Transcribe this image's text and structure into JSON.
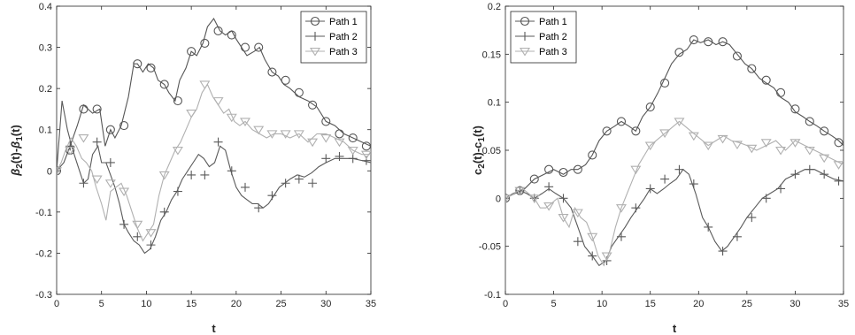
{
  "chart_data": [
    {
      "type": "line",
      "xlabel": "t",
      "ylabel": "β2(t)-β1(t)",
      "ylabel_parts": [
        {
          "text": "β",
          "style": "italic",
          "sub": false
        },
        {
          "text": "2",
          "style": "normal",
          "sub": true
        },
        {
          "text": "(t)-",
          "style": "normal",
          "sub": false
        },
        {
          "text": "β",
          "style": "italic",
          "sub": false
        },
        {
          "text": "1",
          "style": "normal",
          "sub": true
        },
        {
          "text": "(t)",
          "style": "normal",
          "sub": false
        }
      ],
      "xlim": [
        0,
        35
      ],
      "ylim": [
        -0.3,
        0.4
      ],
      "xticks": [
        0,
        5,
        10,
        15,
        20,
        25,
        30,
        35
      ],
      "yticks": [
        -0.3,
        -0.2,
        -0.1,
        0,
        0.1,
        0.2,
        0.3,
        0.4
      ],
      "ytick_labels": [
        "-0.3",
        "-0.2",
        "-0.1",
        "0",
        "0.1",
        "0.2",
        "0.3",
        "0.4"
      ],
      "grid": false,
      "legend_position": "top-right",
      "series": [
        {
          "name": "Path 1",
          "marker": "circle",
          "color": "#555555",
          "x": [
            0,
            0.8,
            1.5,
            2.3,
            3.0,
            4.0,
            4.8,
            5.4,
            6.0,
            6.5,
            7.2,
            8.0,
            8.6,
            9.0,
            9.6,
            10.2,
            10.8,
            11.3,
            12.0,
            12.5,
            13.2,
            13.7,
            14.4,
            15.0,
            15.6,
            16.3,
            16.8,
            17.5,
            18.2,
            18.8,
            19.5,
            20.0,
            20.6,
            21.2,
            22.0,
            22.6,
            23.2,
            24.0,
            24.7,
            25.3,
            26.0,
            27.0,
            28.0,
            29.0,
            30.0,
            31.0,
            32.0,
            33.0,
            34.0,
            35.0
          ],
          "y": [
            0,
            0.02,
            0.06,
            0.11,
            0.16,
            0.14,
            0.15,
            0.06,
            0.1,
            0.08,
            0.11,
            0.18,
            0.26,
            0.26,
            0.24,
            0.26,
            0.25,
            0.22,
            0.21,
            0.19,
            0.17,
            0.22,
            0.25,
            0.29,
            0.28,
            0.31,
            0.35,
            0.37,
            0.34,
            0.33,
            0.34,
            0.32,
            0.3,
            0.28,
            0.29,
            0.3,
            0.27,
            0.24,
            0.23,
            0.21,
            0.2,
            0.18,
            0.17,
            0.155,
            0.12,
            0.11,
            0.09,
            0.08,
            0.07,
            0.06
          ],
          "marker_x": [
            0,
            1.5,
            3.0,
            4.5,
            6.0,
            7.5,
            9.0,
            10.5,
            12.0,
            13.5,
            15.0,
            16.5,
            18.0,
            19.5,
            21.0,
            22.5,
            24.0,
            25.5,
            27.0,
            28.5,
            30.0,
            31.5,
            33.0,
            34.5
          ],
          "marker_y": [
            0,
            0.05,
            0.15,
            0.15,
            0.1,
            0.11,
            0.26,
            0.25,
            0.21,
            0.17,
            0.29,
            0.31,
            0.34,
            0.33,
            0.3,
            0.3,
            0.24,
            0.22,
            0.19,
            0.16,
            0.12,
            0.09,
            0.08,
            0.06
          ]
        },
        {
          "name": "Path 2",
          "marker": "plus",
          "color": "#5a5a5a",
          "x": [
            0,
            0.6,
            1.2,
            1.8,
            2.4,
            3.0,
            3.5,
            4.0,
            4.6,
            5.0,
            5.5,
            6.0,
            6.5,
            7.0,
            7.5,
            8.0,
            8.6,
            9.2,
            9.8,
            10.4,
            11.0,
            11.6,
            12.2,
            12.8,
            13.4,
            14.0,
            14.6,
            15.2,
            15.8,
            16.4,
            17.0,
            17.6,
            18.2,
            18.8,
            19.4,
            20.0,
            20.6,
            21.2,
            21.8,
            22.4,
            23.0,
            23.6,
            24.2,
            24.8,
            25.4,
            26.0,
            26.8,
            27.6,
            28.4,
            29.2,
            30.0,
            31.0,
            32.0,
            33.0,
            34.0,
            35.0
          ],
          "y": [
            0,
            0.17,
            0.1,
            0.05,
            0.01,
            -0.03,
            -0.02,
            0.04,
            0.06,
            0.02,
            0.02,
            -0.01,
            -0.04,
            -0.08,
            -0.13,
            -0.15,
            -0.17,
            -0.18,
            -0.2,
            -0.19,
            -0.16,
            -0.12,
            -0.1,
            -0.07,
            -0.05,
            -0.02,
            0.0,
            0.02,
            0.04,
            0.03,
            0.01,
            0.02,
            0.06,
            0.05,
            0.0,
            -0.04,
            -0.06,
            -0.07,
            -0.08,
            -0.08,
            -0.09,
            -0.08,
            -0.06,
            -0.04,
            -0.03,
            -0.02,
            -0.01,
            -0.015,
            -0.005,
            0.01,
            0.02,
            0.03,
            0.03,
            0.03,
            0.025,
            0.02
          ],
          "marker_x": [
            0,
            1.5,
            3.0,
            4.5,
            6.0,
            7.5,
            9.0,
            10.5,
            12.0,
            13.5,
            15.0,
            16.5,
            18.0,
            19.5,
            21.0,
            22.5,
            24.0,
            25.5,
            27.0,
            28.5,
            30.0,
            31.5,
            33.0,
            34.5
          ],
          "marker_y": [
            0,
            0.06,
            -0.03,
            0.07,
            0.02,
            -0.13,
            -0.16,
            -0.18,
            -0.1,
            -0.05,
            -0.01,
            -0.01,
            0.07,
            0.0,
            -0.04,
            -0.09,
            -0.06,
            -0.03,
            -0.02,
            -0.03,
            0.03,
            0.035,
            0.03,
            0.025
          ]
        },
        {
          "name": "Path 3",
          "marker": "triangle-down",
          "color": "#b0b0b0",
          "x": [
            0,
            0.5,
            1.0,
            1.6,
            2.2,
            2.8,
            3.3,
            3.9,
            4.4,
            5.0,
            5.5,
            6.0,
            6.6,
            7.2,
            7.8,
            8.4,
            9.0,
            9.6,
            10.2,
            10.8,
            11.4,
            12.0,
            12.6,
            13.2,
            13.8,
            14.4,
            15.0,
            15.6,
            16.2,
            16.8,
            17.4,
            18.0,
            18.6,
            19.2,
            19.8,
            20.4,
            21.0,
            21.8,
            22.6,
            23.4,
            24.2,
            25.0,
            26.0,
            27.0,
            28.0,
            29.0,
            30.0,
            31.0,
            32.0,
            33.0,
            34.0,
            35.0
          ],
          "y": [
            0,
            0.02,
            0.05,
            0.08,
            0.06,
            0.03,
            0.02,
            0.0,
            -0.04,
            -0.08,
            -0.12,
            -0.05,
            -0.04,
            -0.03,
            -0.06,
            -0.1,
            -0.14,
            -0.17,
            -0.15,
            -0.13,
            -0.06,
            -0.01,
            0.02,
            0.05,
            0.07,
            0.1,
            0.13,
            0.15,
            0.19,
            0.21,
            0.18,
            0.16,
            0.14,
            0.15,
            0.12,
            0.11,
            0.12,
            0.1,
            0.09,
            0.08,
            0.09,
            0.09,
            0.08,
            0.09,
            0.07,
            0.09,
            0.09,
            0.08,
            0.07,
            0.05,
            0.04,
            0.04
          ],
          "marker_x": [
            0,
            1.5,
            3.0,
            4.5,
            6.0,
            7.5,
            9.0,
            10.5,
            12.0,
            13.5,
            15.0,
            16.5,
            18.0,
            19.5,
            21.0,
            22.5,
            24.0,
            25.5,
            27.0,
            28.5,
            30.0,
            31.5,
            33.0,
            34.5
          ],
          "marker_y": [
            0,
            0.05,
            0.08,
            -0.02,
            -0.03,
            -0.05,
            -0.13,
            -0.15,
            -0.01,
            0.05,
            0.14,
            0.21,
            0.17,
            0.13,
            0.12,
            0.1,
            0.09,
            0.09,
            0.09,
            0.07,
            0.08,
            0.07,
            0.05,
            0.04
          ]
        }
      ]
    },
    {
      "type": "line",
      "xlabel": "t",
      "ylabel": "c2(t)-c1(t)",
      "ylabel_parts": [
        {
          "text": "c",
          "style": "normal",
          "sub": false
        },
        {
          "text": "2",
          "style": "normal",
          "sub": true
        },
        {
          "text": "(t)-c",
          "style": "normal",
          "sub": false
        },
        {
          "text": "1",
          "style": "normal",
          "sub": true
        },
        {
          "text": "(t)",
          "style": "normal",
          "sub": false
        }
      ],
      "xlim": [
        0,
        35
      ],
      "ylim": [
        -0.1,
        0.2
      ],
      "xticks": [
        0,
        5,
        10,
        15,
        20,
        25,
        30,
        35
      ],
      "yticks": [
        -0.1,
        -0.05,
        0,
        0.05,
        0.1,
        0.15,
        0.2
      ],
      "ytick_labels": [
        "-0.1",
        "-0.05",
        "0",
        "0.05",
        "0.1",
        "0.15",
        "0.2"
      ],
      "grid": false,
      "legend_position": "top-left",
      "series": [
        {
          "name": "Path 1",
          "marker": "circle",
          "color": "#555555",
          "x": [
            0,
            1.0,
            2.0,
            3.0,
            4.0,
            5.0,
            6.0,
            6.8,
            7.5,
            8.3,
            9.0,
            9.7,
            10.5,
            11.3,
            12.0,
            12.8,
            13.5,
            14.2,
            15.0,
            15.8,
            16.5,
            17.2,
            18.0,
            18.8,
            19.5,
            20.2,
            21.0,
            21.8,
            22.5,
            23.2,
            24.0,
            24.8,
            25.5,
            26.3,
            27.0,
            27.8,
            28.5,
            29.3,
            30.0,
            30.8,
            31.5,
            32.3,
            33.0,
            33.8,
            34.5,
            35.0
          ],
          "y": [
            0,
            0.005,
            0.01,
            0.02,
            0.025,
            0.03,
            0.025,
            0.03,
            0.03,
            0.035,
            0.045,
            0.06,
            0.07,
            0.075,
            0.08,
            0.075,
            0.07,
            0.085,
            0.095,
            0.11,
            0.125,
            0.14,
            0.15,
            0.155,
            0.165,
            0.162,
            0.165,
            0.16,
            0.163,
            0.16,
            0.15,
            0.14,
            0.135,
            0.125,
            0.12,
            0.115,
            0.105,
            0.1,
            0.09,
            0.085,
            0.08,
            0.075,
            0.07,
            0.065,
            0.06,
            0.055
          ],
          "marker_x": [
            0,
            1.5,
            3.0,
            4.5,
            6.0,
            7.5,
            9.0,
            10.5,
            12.0,
            13.5,
            15.0,
            16.5,
            18.0,
            19.5,
            21.0,
            22.5,
            24.0,
            25.5,
            27.0,
            28.5,
            30.0,
            31.5,
            33.0,
            34.5
          ],
          "marker_y": [
            0,
            0.008,
            0.02,
            0.03,
            0.027,
            0.03,
            0.045,
            0.07,
            0.08,
            0.07,
            0.095,
            0.12,
            0.152,
            0.165,
            0.163,
            0.163,
            0.148,
            0.135,
            0.123,
            0.11,
            0.093,
            0.08,
            0.07,
            0.058
          ]
        },
        {
          "name": "Path 2",
          "marker": "plus",
          "color": "#5a5a5a",
          "x": [
            0,
            0.8,
            1.5,
            2.2,
            3.0,
            3.8,
            4.5,
            5.2,
            6.0,
            6.8,
            7.5,
            8.2,
            9.0,
            9.7,
            10.4,
            11.0,
            11.7,
            12.4,
            13.0,
            13.7,
            14.4,
            15.0,
            15.7,
            16.4,
            17.0,
            17.7,
            18.4,
            19.0,
            19.7,
            20.4,
            21.0,
            21.7,
            22.4,
            23.0,
            23.7,
            24.4,
            25.0,
            25.8,
            26.6,
            27.4,
            28.2,
            29.0,
            30.0,
            31.0,
            32.0,
            33.0,
            34.0,
            35.0
          ],
          "y": [
            0,
            0.005,
            0.008,
            0.005,
            0.0,
            0.005,
            0.01,
            0.005,
            0.0,
            -0.01,
            -0.03,
            -0.05,
            -0.06,
            -0.07,
            -0.065,
            -0.05,
            -0.04,
            -0.03,
            -0.02,
            -0.01,
            0.0,
            0.01,
            0.005,
            0.01,
            0.015,
            0.02,
            0.03,
            0.025,
            0.005,
            -0.02,
            -0.03,
            -0.045,
            -0.055,
            -0.05,
            -0.04,
            -0.03,
            -0.02,
            -0.01,
            0.0,
            0.005,
            0.01,
            0.02,
            0.025,
            0.03,
            0.03,
            0.025,
            0.02,
            0.018
          ],
          "marker_x": [
            0,
            1.5,
            3.0,
            4.5,
            6.0,
            7.5,
            9.0,
            10.5,
            12.0,
            13.5,
            15.0,
            16.5,
            18.0,
            19.5,
            21.0,
            22.5,
            24.0,
            25.5,
            27.0,
            28.5,
            30.0,
            31.5,
            33.0,
            34.5
          ],
          "marker_y": [
            0,
            0.008,
            0.0,
            0.012,
            0.0,
            -0.045,
            -0.06,
            -0.065,
            -0.04,
            -0.01,
            0.01,
            0.02,
            0.03,
            0.015,
            -0.03,
            -0.055,
            -0.04,
            -0.02,
            0.0,
            0.01,
            0.025,
            0.03,
            0.025,
            0.018
          ]
        },
        {
          "name": "Path 3",
          "marker": "triangle-down",
          "color": "#b0b0b0",
          "x": [
            0,
            0.6,
            1.2,
            1.8,
            2.4,
            3.0,
            3.6,
            4.2,
            4.8,
            5.4,
            6.0,
            6.6,
            7.2,
            7.8,
            8.4,
            9.0,
            9.6,
            10.2,
            10.8,
            11.4,
            12.0,
            12.6,
            13.2,
            13.8,
            14.4,
            15.0,
            15.6,
            16.2,
            16.8,
            17.4,
            18.0,
            18.6,
            19.2,
            19.8,
            20.4,
            21.0,
            21.8,
            22.6,
            23.4,
            24.2,
            25.0,
            26.0,
            27.0,
            28.0,
            29.0,
            30.0,
            31.0,
            32.0,
            33.0,
            34.0,
            35.0
          ],
          "y": [
            0,
            0.003,
            0.007,
            0.01,
            0.005,
            0.0,
            -0.01,
            -0.01,
            -0.005,
            0.0,
            -0.02,
            -0.03,
            -0.01,
            -0.02,
            -0.025,
            -0.04,
            -0.06,
            -0.07,
            -0.055,
            -0.03,
            -0.01,
            0.005,
            0.02,
            0.035,
            0.045,
            0.055,
            0.06,
            0.065,
            0.07,
            0.075,
            0.08,
            0.075,
            0.07,
            0.065,
            0.06,
            0.055,
            0.06,
            0.065,
            0.06,
            0.058,
            0.055,
            0.05,
            0.055,
            0.06,
            0.05,
            0.06,
            0.055,
            0.05,
            0.045,
            0.04,
            0.035
          ],
          "marker_x": [
            0,
            1.5,
            3.0,
            4.5,
            6.0,
            7.5,
            9.0,
            10.5,
            12.0,
            13.5,
            15.0,
            16.5,
            18.0,
            19.5,
            21.0,
            22.5,
            24.0,
            25.5,
            27.0,
            28.5,
            30.0,
            31.5,
            33.0,
            34.5
          ],
          "marker_y": [
            0,
            0.008,
            0.0,
            -0.008,
            -0.02,
            -0.015,
            -0.04,
            -0.06,
            -0.01,
            0.03,
            0.055,
            0.068,
            0.08,
            0.065,
            0.055,
            0.062,
            0.056,
            0.052,
            0.058,
            0.05,
            0.058,
            0.05,
            0.042,
            0.035
          ]
        }
      ]
    }
  ]
}
